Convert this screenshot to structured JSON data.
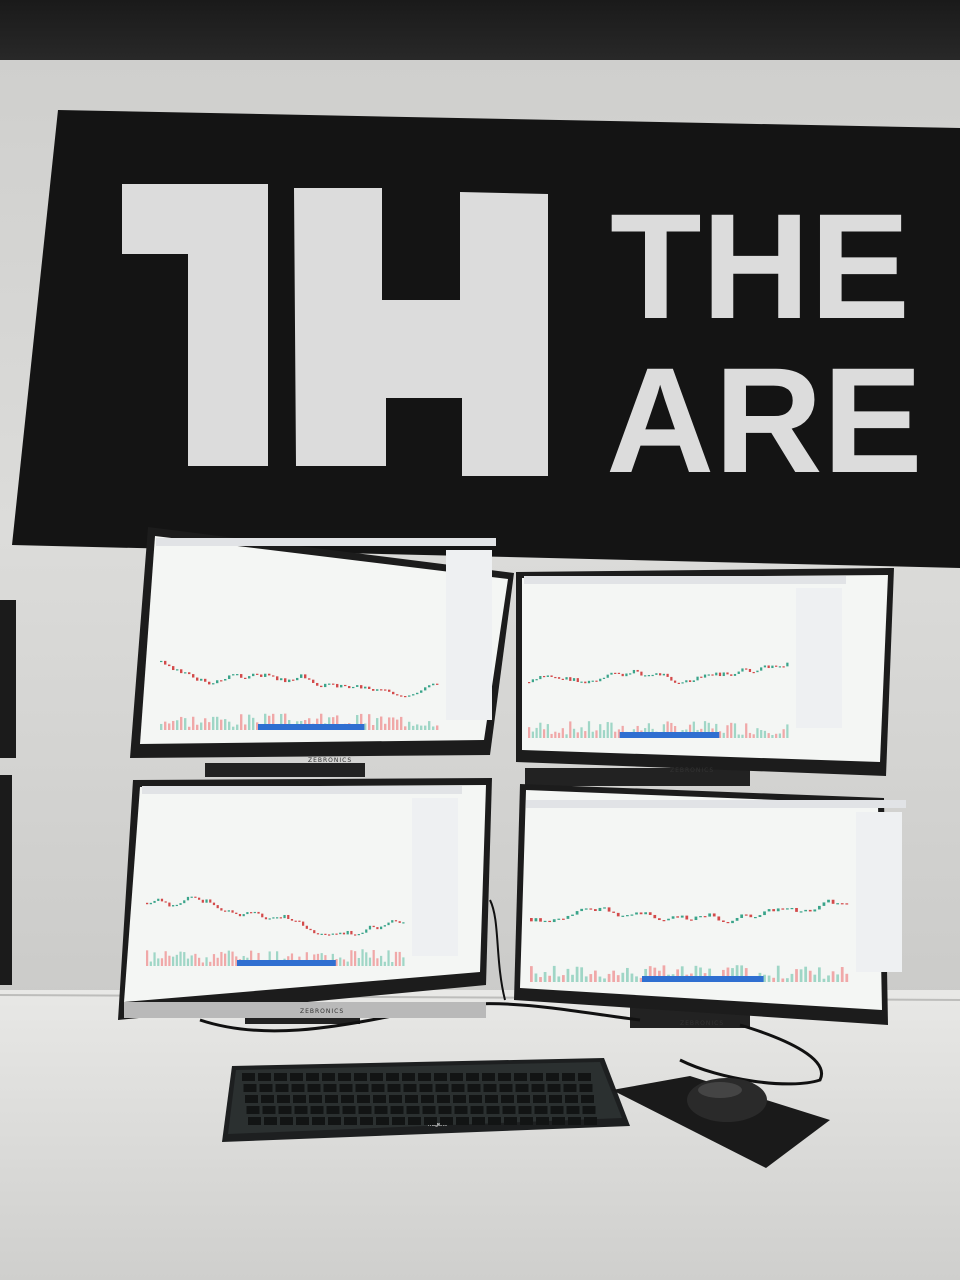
{
  "banner": {
    "logo_mark": "TH",
    "word_line_1": "THE",
    "word_line_2": "ARE",
    "background": "#141414",
    "foreground": "#dcdcdc"
  },
  "monitors": [
    {
      "position": "top-left",
      "brand": "ZEBRONICS",
      "content": "candlestick-chart"
    },
    {
      "position": "top-right",
      "brand": "ZEBRONICS",
      "content": "candlestick-chart"
    },
    {
      "position": "bottom-left",
      "brand": "ZEBRONICS",
      "content": "candlestick-chart"
    },
    {
      "position": "bottom-right",
      "brand": "ZEBRONICS",
      "content": "candlestick-chart"
    }
  ],
  "keyboard": {
    "brand": "frägens"
  },
  "colors": {
    "wall": "#d9d9d7",
    "desk": "#e6e6e4",
    "screen": "#f4f6f4",
    "candle_up": "#3aa48a",
    "candle_down": "#d34a4a",
    "toast": "#2f6fd1"
  }
}
